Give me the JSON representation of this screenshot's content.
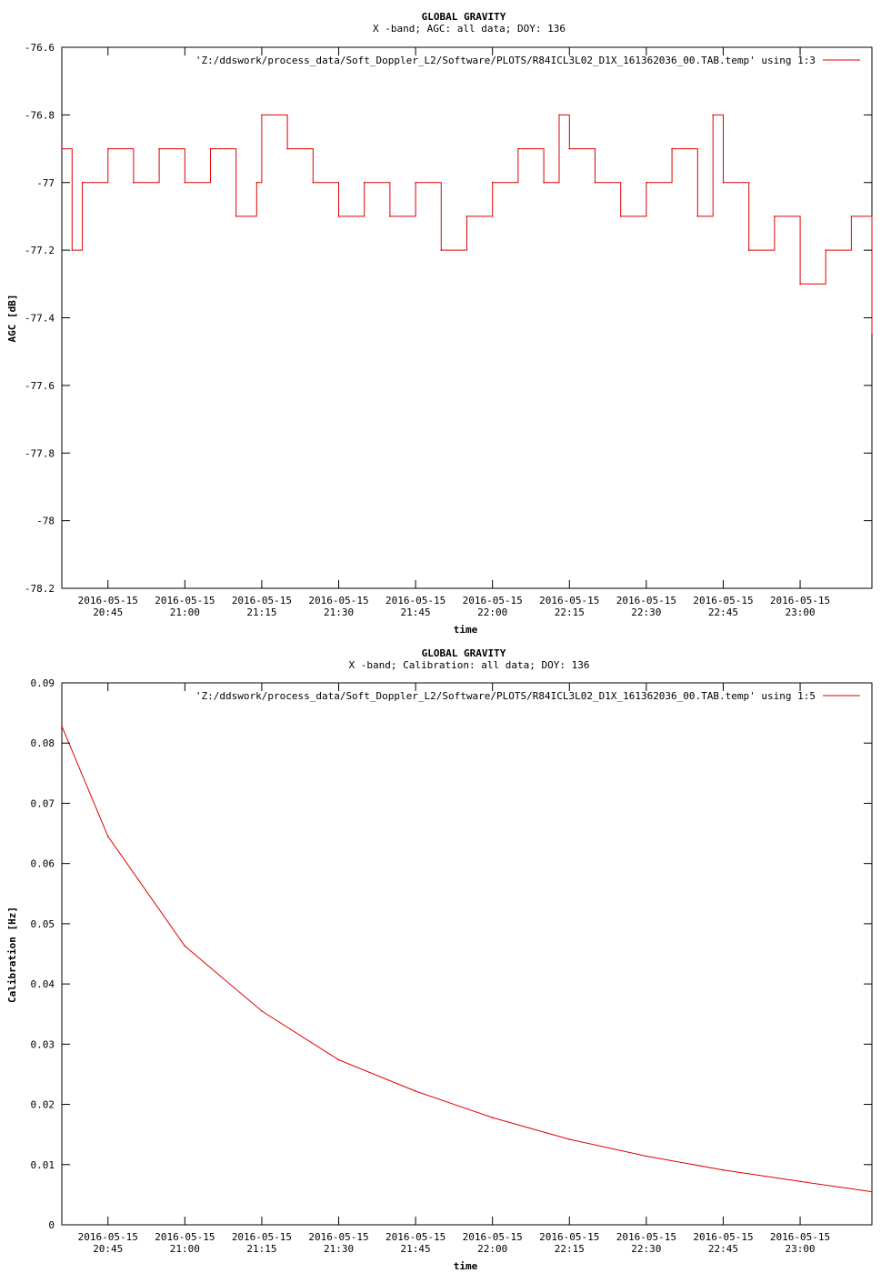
{
  "colors": {
    "series": "#e00000",
    "axis": "#000000",
    "background": "#ffffff"
  },
  "chart_data": [
    {
      "type": "line",
      "title": "GLOBAL GRAVITY",
      "subtitle": "X -band; AGC: all data; DOY: 136",
      "xlabel": "time",
      "ylabel": "AGC [dB]",
      "legend_label": "'Z:/ddswork/process_data/Soft_Doppler_L2/Software/PLOTS/R84ICL3L02_D1X_161362036_00.TAB.temp' using 1:3",
      "legend_position": "top-right",
      "grid": false,
      "xlim": [
        "2016-05-15 20:36",
        "2016-05-15 23:14"
      ],
      "ylim": [
        -78.2,
        -76.6
      ],
      "y_ticks": [
        {
          "value": -76.6,
          "label": "-76.6"
        },
        {
          "value": -76.8,
          "label": "-76.8"
        },
        {
          "value": -77.0,
          "label": "-77"
        },
        {
          "value": -77.2,
          "label": "-77.2"
        },
        {
          "value": -77.4,
          "label": "-77.4"
        },
        {
          "value": -77.6,
          "label": "-77.6"
        },
        {
          "value": -77.8,
          "label": "-77.8"
        },
        {
          "value": -78.0,
          "label": "-78"
        },
        {
          "value": -78.2,
          "label": "-78.2"
        }
      ],
      "x_ticks": [
        {
          "value": "2016-05-15 20:45",
          "date": "2016-05-15",
          "time": "20:45"
        },
        {
          "value": "2016-05-15 21:00",
          "date": "2016-05-15",
          "time": "21:00"
        },
        {
          "value": "2016-05-15 21:15",
          "date": "2016-05-15",
          "time": "21:15"
        },
        {
          "value": "2016-05-15 21:30",
          "date": "2016-05-15",
          "time": "21:30"
        },
        {
          "value": "2016-05-15 21:45",
          "date": "2016-05-15",
          "time": "21:45"
        },
        {
          "value": "2016-05-15 22:00",
          "date": "2016-05-15",
          "time": "22:00"
        },
        {
          "value": "2016-05-15 22:15",
          "date": "2016-05-15",
          "time": "22:15"
        },
        {
          "value": "2016-05-15 22:30",
          "date": "2016-05-15",
          "time": "22:30"
        },
        {
          "value": "2016-05-15 22:45",
          "date": "2016-05-15",
          "time": "22:45"
        },
        {
          "value": "2016-05-15 23:00",
          "date": "2016-05-15",
          "time": "23:00"
        }
      ],
      "series": [
        {
          "x": [
            "2016-05-15 20:36",
            "2016-05-15 20:38",
            "2016-05-15 20:40",
            "2016-05-15 20:45",
            "2016-05-15 20:50",
            "2016-05-15 20:55",
            "2016-05-15 21:00",
            "2016-05-15 21:05",
            "2016-05-15 21:10",
            "2016-05-15 21:14",
            "2016-05-15 21:15",
            "2016-05-15 21:20",
            "2016-05-15 21:25",
            "2016-05-15 21:30",
            "2016-05-15 21:35",
            "2016-05-15 21:40",
            "2016-05-15 21:45",
            "2016-05-15 21:50",
            "2016-05-15 21:55",
            "2016-05-15 22:00",
            "2016-05-15 22:05",
            "2016-05-15 22:10",
            "2016-05-15 22:13",
            "2016-05-15 22:15",
            "2016-05-15 22:20",
            "2016-05-15 22:25",
            "2016-05-15 22:30",
            "2016-05-15 22:35",
            "2016-05-15 22:40",
            "2016-05-15 22:43",
            "2016-05-15 22:45",
            "2016-05-15 22:50",
            "2016-05-15 22:55",
            "2016-05-15 23:00",
            "2016-05-15 23:05",
            "2016-05-15 23:10",
            "2016-05-15 23:14"
          ],
          "y": [
            -76.9,
            -77.2,
            -77.0,
            -76.9,
            -77.0,
            -76.9,
            -77.0,
            -76.9,
            -77.1,
            -77.0,
            -76.8,
            -76.9,
            -77.0,
            -77.1,
            -77.0,
            -77.1,
            -77.0,
            -77.2,
            -77.1,
            -77.0,
            -76.9,
            -77.0,
            -76.8,
            -76.9,
            -77.0,
            -77.1,
            -77.0,
            -76.9,
            -77.1,
            -76.8,
            -77.0,
            -77.2,
            -77.1,
            -77.3,
            -77.2,
            -77.1,
            -77.45
          ]
        }
      ]
    },
    {
      "type": "line",
      "title": "GLOBAL GRAVITY",
      "subtitle": "X -band; Calibration: all data; DOY: 136",
      "xlabel": "time",
      "ylabel": "Calibration [Hz]",
      "legend_label": "'Z:/ddswork/process_data/Soft_Doppler_L2/Software/PLOTS/R84ICL3L02_D1X_161362036_00.TAB.temp' using 1:5",
      "legend_position": "top-right",
      "grid": false,
      "xlim": [
        "2016-05-15 20:36",
        "2016-05-15 23:14"
      ],
      "ylim": [
        0,
        0.09
      ],
      "y_ticks": [
        {
          "value": 0.09,
          "label": "0.09"
        },
        {
          "value": 0.08,
          "label": "0.08"
        },
        {
          "value": 0.07,
          "label": "0.07"
        },
        {
          "value": 0.06,
          "label": "0.06"
        },
        {
          "value": 0.05,
          "label": "0.05"
        },
        {
          "value": 0.04,
          "label": "0.04"
        },
        {
          "value": 0.03,
          "label": "0.03"
        },
        {
          "value": 0.02,
          "label": "0.02"
        },
        {
          "value": 0.01,
          "label": "0.01"
        },
        {
          "value": 0,
          "label": "0"
        }
      ],
      "x_ticks": [
        {
          "value": "2016-05-15 20:45",
          "date": "2016-05-15",
          "time": "20:45"
        },
        {
          "value": "2016-05-15 21:00",
          "date": "2016-05-15",
          "time": "21:00"
        },
        {
          "value": "2016-05-15 21:15",
          "date": "2016-05-15",
          "time": "21:15"
        },
        {
          "value": "2016-05-15 21:30",
          "date": "2016-05-15",
          "time": "21:30"
        },
        {
          "value": "2016-05-15 21:45",
          "date": "2016-05-15",
          "time": "21:45"
        },
        {
          "value": "2016-05-15 22:00",
          "date": "2016-05-15",
          "time": "22:00"
        },
        {
          "value": "2016-05-15 22:15",
          "date": "2016-05-15",
          "time": "22:15"
        },
        {
          "value": "2016-05-15 22:30",
          "date": "2016-05-15",
          "time": "22:30"
        },
        {
          "value": "2016-05-15 22:45",
          "date": "2016-05-15",
          "time": "22:45"
        },
        {
          "value": "2016-05-15 23:00",
          "date": "2016-05-15",
          "time": "23:00"
        }
      ],
      "series": [
        {
          "x": [
            "2016-05-15 20:36",
            "2016-05-15 20:45",
            "2016-05-15 21:00",
            "2016-05-15 21:15",
            "2016-05-15 21:30",
            "2016-05-15 21:45",
            "2016-05-15 22:00",
            "2016-05-15 22:15",
            "2016-05-15 22:30",
            "2016-05-15 22:45",
            "2016-05-15 23:00",
            "2016-05-15 23:14"
          ],
          "y": [
            0.0828,
            0.0645,
            0.0463,
            0.0355,
            0.0274,
            0.0222,
            0.0178,
            0.0142,
            0.0114,
            0.0091,
            0.0072,
            0.0055
          ]
        }
      ]
    }
  ]
}
